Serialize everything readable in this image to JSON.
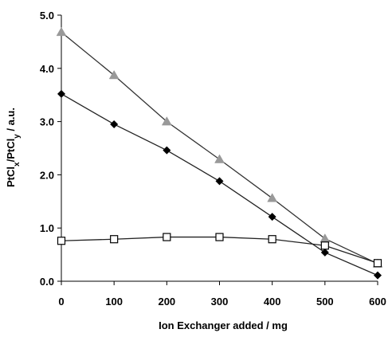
{
  "chart_data": {
    "type": "line",
    "title": "",
    "xlabel": "Ion Exchanger added / mg",
    "ylabel": "PtClx/PtCly / a.u.",
    "ylabel_parts": {
      "base1": "PtCl",
      "sub1": "x",
      "sep": "/PtCl",
      "sub2": "y",
      "tail": " / a.u."
    },
    "x": [
      0,
      100,
      200,
      300,
      400,
      500,
      600
    ],
    "xlim": [
      0,
      600
    ],
    "ylim": [
      0,
      5
    ],
    "xticks": [
      0,
      100,
      200,
      300,
      400,
      500,
      600
    ],
    "yticks": [
      0,
      1,
      2,
      3,
      4,
      5
    ],
    "ytick_labels": [
      "0.0",
      "1.0",
      "2.0",
      "3.0",
      "4.0",
      "5.0"
    ],
    "grid": false,
    "legend": "none",
    "series": [
      {
        "marker": "triangle",
        "color": "#999999",
        "line_color": "#333333",
        "values": [
          4.68,
          3.87,
          3.0,
          2.29,
          1.56,
          0.8,
          0.33
        ]
      },
      {
        "marker": "diamond",
        "color": "#000000",
        "line_color": "#222222",
        "values": [
          3.52,
          2.95,
          2.46,
          1.88,
          1.21,
          0.54,
          0.11
        ]
      },
      {
        "marker": "square-open",
        "color": "#000000",
        "line_color": "#222222",
        "values": [
          0.76,
          0.79,
          0.83,
          0.83,
          0.79,
          0.67,
          0.34
        ]
      }
    ]
  }
}
